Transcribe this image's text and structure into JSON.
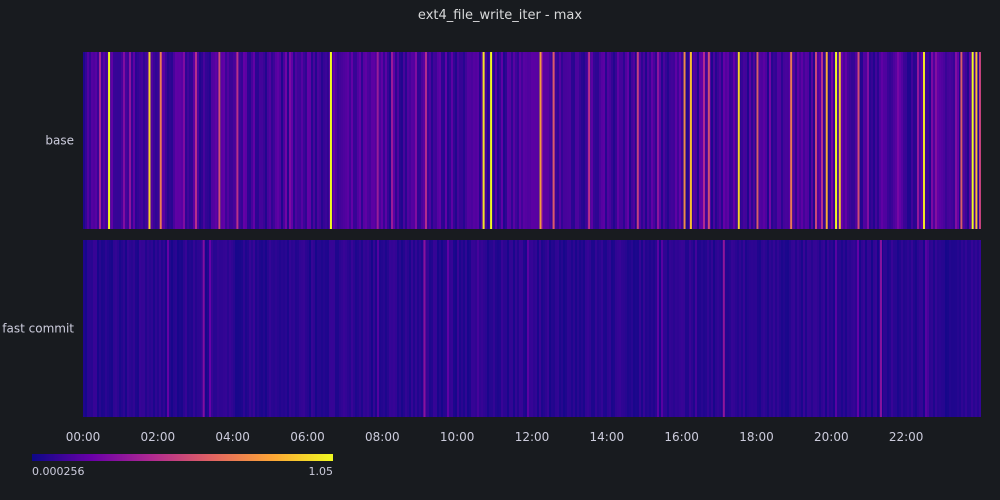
{
  "chart_data": {
    "type": "heatmap",
    "title": "ext4_file_write_iter - max",
    "xlabel": "",
    "ylabel": "",
    "x_tick_labels": [
      "00:00",
      "02:00",
      "04:00",
      "06:00",
      "08:00",
      "10:00",
      "12:00",
      "14:00",
      "16:00",
      "18:00",
      "20:00",
      "22:00"
    ],
    "x_range_hours": [
      0,
      24
    ],
    "rows": [
      {
        "label": "base",
        "base_value": 0.12,
        "highlights": [
          {
            "t": 0.67,
            "v": 1.05
          },
          {
            "t": 1.75,
            "v": 0.95
          },
          {
            "t": 2.05,
            "v": 0.7
          },
          {
            "t": 3.62,
            "v": 0.55
          },
          {
            "t": 4.1,
            "v": 0.45
          },
          {
            "t": 6.6,
            "v": 1.05
          },
          {
            "t": 7.85,
            "v": 0.35
          },
          {
            "t": 10.68,
            "v": 1.0
          },
          {
            "t": 10.88,
            "v": 1.05
          },
          {
            "t": 12.2,
            "v": 0.8
          },
          {
            "t": 12.55,
            "v": 0.6
          },
          {
            "t": 13.5,
            "v": 0.45
          },
          {
            "t": 14.8,
            "v": 0.5
          },
          {
            "t": 16.05,
            "v": 0.75
          },
          {
            "t": 16.22,
            "v": 0.9
          },
          {
            "t": 16.7,
            "v": 0.55
          },
          {
            "t": 17.5,
            "v": 0.95
          },
          {
            "t": 18.0,
            "v": 0.6
          },
          {
            "t": 18.9,
            "v": 0.7
          },
          {
            "t": 19.85,
            "v": 0.85
          },
          {
            "t": 20.1,
            "v": 1.05
          },
          {
            "t": 20.2,
            "v": 0.9
          },
          {
            "t": 20.7,
            "v": 0.55
          },
          {
            "t": 22.45,
            "v": 1.0
          },
          {
            "t": 23.45,
            "v": 0.6
          },
          {
            "t": 23.75,
            "v": 1.05
          },
          {
            "t": 23.85,
            "v": 0.9
          }
        ]
      },
      {
        "label": "fast commit",
        "base_value": 0.06,
        "highlights": [
          {
            "t": 3.2,
            "v": 0.28
          },
          {
            "t": 9.1,
            "v": 0.3
          },
          {
            "t": 17.1,
            "v": 0.32
          },
          {
            "t": 21.3,
            "v": 0.3
          }
        ]
      }
    ],
    "colorscale": {
      "min": 0.000256,
      "max": 1.05,
      "min_label": "0.000256",
      "max_label": "1.05",
      "colors": [
        "#0d0887",
        "#6a00a8",
        "#b12a90",
        "#e16462",
        "#fca636",
        "#f0f921"
      ]
    }
  }
}
